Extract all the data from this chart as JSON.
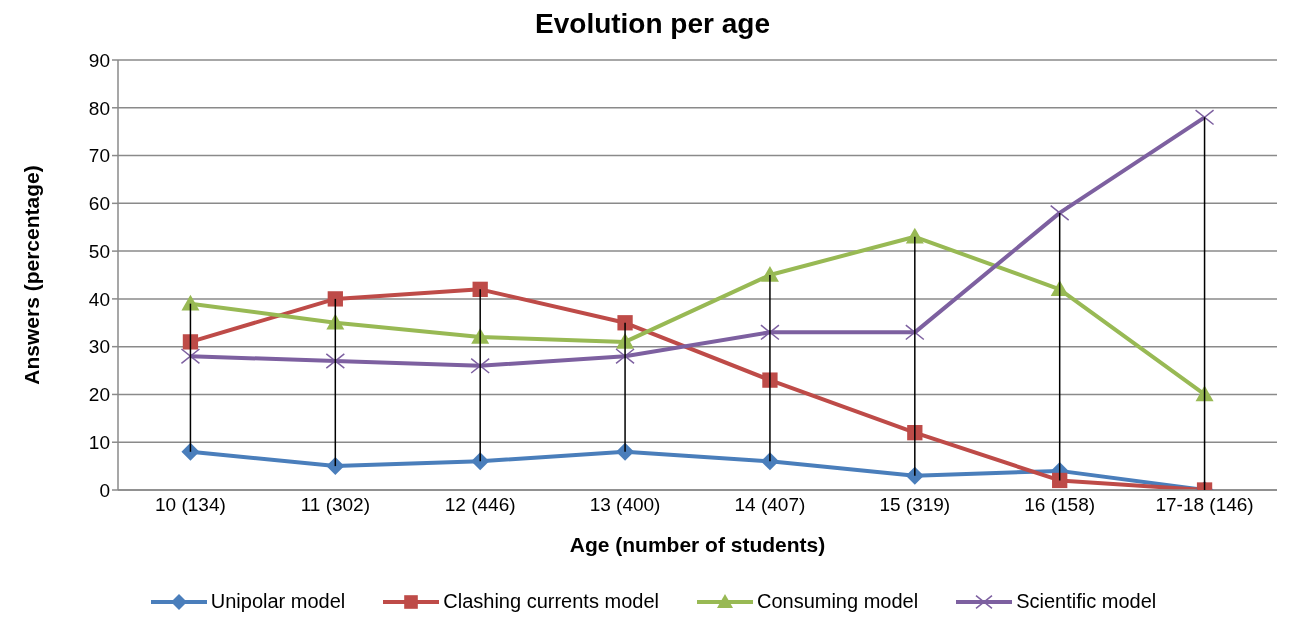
{
  "chart_data": {
    "type": "line",
    "title": "Evolution per age",
    "xlabel": "Age (number of students)",
    "ylabel": "Answers (percentage)",
    "categories": [
      "10 (134)",
      "11 (302)",
      "12 (446)",
      "13 (400)",
      "14 (407)",
      "15 (319)",
      "16 (158)",
      "17-18 (146)"
    ],
    "series": [
      {
        "name": "Unipolar model",
        "color": "#4a7ebb",
        "marker": "diamond",
        "values": [
          8,
          5,
          6,
          8,
          6,
          3,
          4,
          0
        ],
        "errors": [
          [
            8,
            39
          ],
          [
            5,
            40
          ],
          [
            6,
            42
          ],
          [
            8,
            35
          ],
          [
            6,
            45
          ],
          [
            3,
            53
          ],
          [
            2,
            58
          ],
          [
            0,
            78
          ]
        ]
      },
      {
        "name": "Clashing currents model",
        "color": "#be4b48",
        "marker": "square",
        "values": [
          31,
          40,
          42,
          35,
          23,
          12,
          2,
          0
        ]
      },
      {
        "name": "Consuming model",
        "color": "#98b954",
        "marker": "triangle",
        "values": [
          39,
          35,
          32,
          31,
          45,
          53,
          42,
          20
        ]
      },
      {
        "name": "Scientific model",
        "color": "#7d60a0",
        "marker": "cross",
        "values": [
          28,
          27,
          26,
          28,
          33,
          33,
          58,
          78
        ]
      }
    ],
    "ylim": [
      0,
      90
    ],
    "yticks": [
      0,
      10,
      20,
      30,
      40,
      50,
      60,
      70,
      80,
      90
    ],
    "grid": "y",
    "legend": "bottom"
  }
}
